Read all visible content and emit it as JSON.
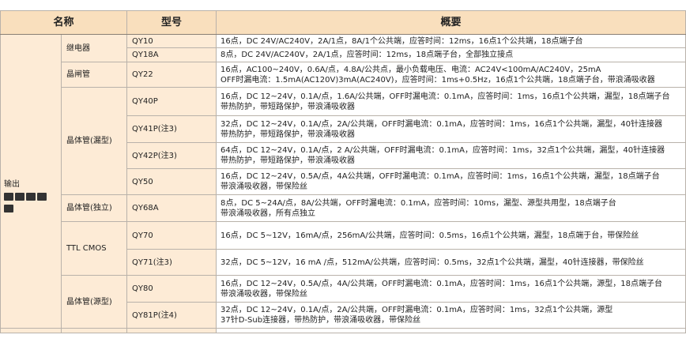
{
  "headers": [
    "名称",
    "型号",
    "概要"
  ],
  "group": "输出",
  "icons": [
    "relay-module-icon",
    "module-icon",
    "module-icon",
    "module-icon",
    "module-icon"
  ],
  "rows": [
    {
      "model": "QY10",
      "desc": [
        "16点，DC 24V/AC240V，2A/1点，8A/1个公共端，应答时间：12ms，16点1个公共端，18点端子台"
      ]
    },
    {
      "model": "QY18A",
      "desc": [
        "8点，DC 24V/AC240V，2A/1点，应答时间：12ms，18点端子台，全部独立接点"
      ]
    },
    {
      "model": "QY22",
      "desc": [
        "16点，AC100~240V，0.6A/点，4.8A/公共点，最小负载电压、电流：AC24V<100mA/AC240V，25mA",
        "OFF时漏电流：1.5mA(AC120V)3mA(AC240V)，应答时间：1ms+0.5Hz，16点1个公共端，18点端子台，带浪涌吸收器"
      ]
    },
    {
      "model": "QY40P",
      "desc": [
        "16点，DC 12~24V，0.1A/点，1.6A/公共端，OFF时漏电流：0.1mA，应答时间：1ms，16点1个公共端，漏型，18点端子台",
        "带热防护，带短路保护，带浪涌吸收器"
      ]
    },
    {
      "model": "QY41P(注3)",
      "desc": [
        "32点，DC 12~24V，0.1A/点，2A/公共端，OFF时漏电流：0.1mA，应答时间：1ms，16点1个公共端，漏型，40针连接器",
        "带热防护，带短路保护，带浪涌吸收器"
      ]
    },
    {
      "model": "QY42P(注3)",
      "desc": [
        "64点，DC 12~24V，0.1A/点，2 A/公共端，OFF时漏电流：0.1mA，应答时间：1ms，32点1个公共端，漏型，40针连接器",
        "带热防护，带短路保护，带浪涌吸收器"
      ]
    },
    {
      "model": "QY50",
      "desc": [
        "16点，DC 12~24V，0.5A/点，4A公共端，OFF时漏电流：0.1mA，应答时间：1ms，16点1个公共端，漏型，18点端子台",
        "带浪涌吸收器，带保险丝"
      ]
    },
    {
      "model": "QY68A",
      "desc": [
        "8点，DC 5~24A/点，8A/公共端，OFF时漏电流：0.1mA，应答时间：10ms，漏型、源型共用型，18点端子台",
        "带浪涌吸收器，所有点独立"
      ]
    },
    {
      "model": "QY70",
      "desc": [
        "16点，DC 5~12V，16mA/点，256mA/公共端，应答时间：0.5ms，16点1个公共端，漏型，18点端于台，带保险丝"
      ]
    },
    {
      "model": "QY71(注3)",
      "desc": [
        "32点，DC 5~12V，16 mA /点，512mA/公共端，应答时间：0.5ms，32点1个公共端，漏型，40针连接器，带保险丝"
      ]
    },
    {
      "model": "QY80",
      "desc": [
        "16点，DC 12~24V，0.5A/点，4A/公共端，OFF时漏电流：0.1mA，应答时间：1ms，16点1个公共端，源型，18点端子台",
        "带浪涌吸收器，带保险丝"
      ]
    },
    {
      "model": "QY81P(注4)",
      "desc": [
        "32点，DC 12~24V，0.1A/点，2A/公共端，OFF时漏电流：0.1mA，应答时间：1ms，32点1个公共端，源型",
        "37针D-Sub连接器，带热防护，带浪涌吸收器，带保险丝"
      ]
    }
  ],
  "types": [
    "继电器",
    "晶闸管",
    "晶体管(漏型)",
    "晶体管(独立)",
    "TTL CMOS",
    "晶体管(源型)"
  ]
}
